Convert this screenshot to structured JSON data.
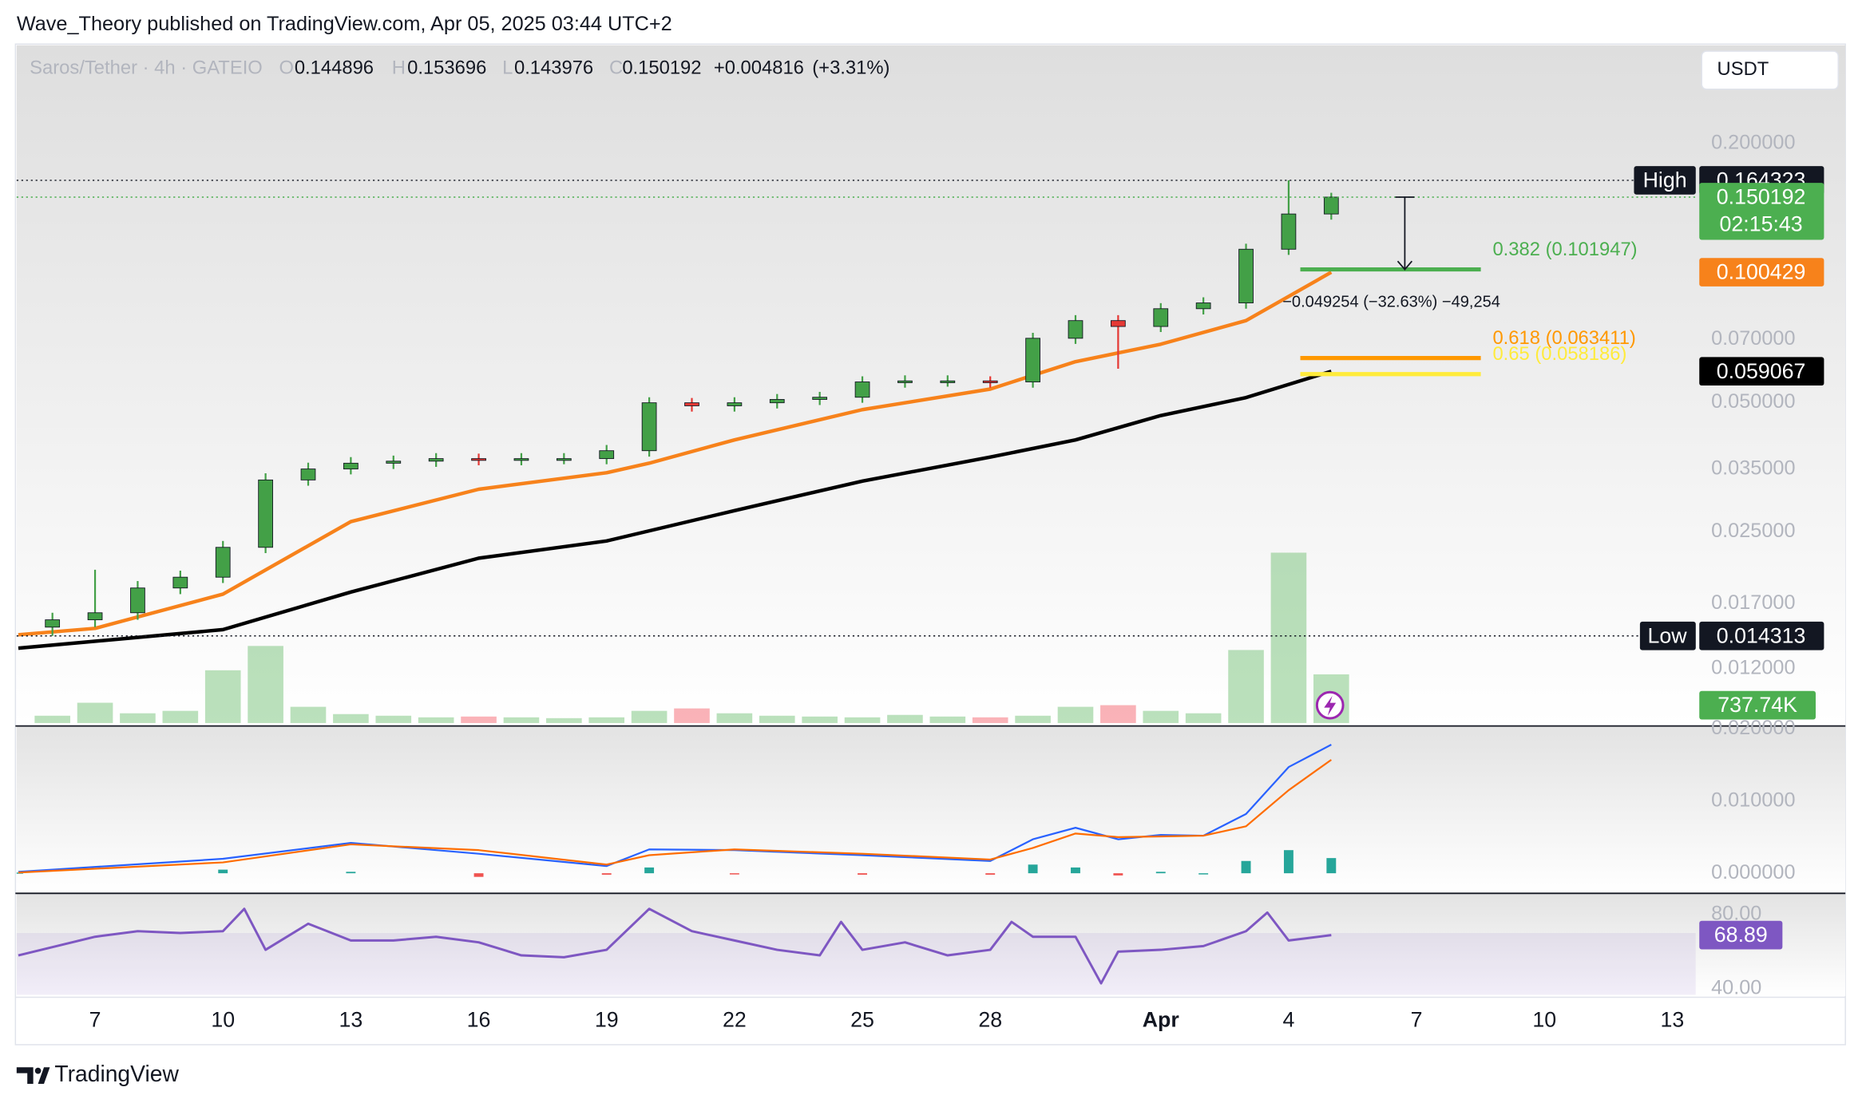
{
  "header": {
    "publisher": "Wave_Theory published on TradingView.com, Apr 05, 2025 03:44 UTC+2"
  },
  "legend": {
    "symbol": "Saros/Tether · 4h · GATEIO",
    "o_label": "O",
    "open": 0.144896,
    "h_label": "H",
    "high": 0.153696,
    "l_label": "L",
    "low": 0.143976,
    "c_label": "C",
    "close": 0.150192,
    "change": {
      "value": 0.004816,
      "label": "+0.004816"
    },
    "change_pct": {
      "value": 3.31,
      "label": "(+3.31%)"
    }
  },
  "currency": "USDT",
  "footer": {
    "brand": "TradingView"
  },
  "chart_data": [
    {
      "type": "candlestick",
      "log": true,
      "up_color": "#43a047",
      "down_color": "#e53935",
      "x": [
        6,
        7,
        8,
        9,
        10,
        11,
        12,
        13,
        14,
        15,
        16,
        17,
        18,
        19,
        20,
        21,
        22,
        23,
        24,
        25,
        26,
        27,
        28,
        29,
        30,
        31,
        32,
        33,
        34,
        35,
        36
      ],
      "open": [
        0.015,
        0.0156,
        0.0162,
        0.0185,
        0.0196,
        0.023,
        0.033,
        0.035,
        0.0361,
        0.0365,
        0.037,
        0.0368,
        0.037,
        0.037,
        0.0386,
        0.0499,
        0.0491,
        0.0499,
        0.0508,
        0.0514,
        0.0558,
        0.0561,
        0.0561,
        0.0558,
        0.0705,
        0.0775,
        0.0751,
        0.0826,
        0.0852,
        0.1136,
        0.1372
      ],
      "high": [
        0.0162,
        0.0204,
        0.0192,
        0.0203,
        0.0238,
        0.0342,
        0.0362,
        0.0373,
        0.0376,
        0.0381,
        0.038,
        0.0381,
        0.0381,
        0.0398,
        0.0514,
        0.0512,
        0.0514,
        0.0523,
        0.0529,
        0.0575,
        0.0578,
        0.0578,
        0.0575,
        0.0726,
        0.0798,
        0.0798,
        0.0851,
        0.0878,
        0.117,
        0.164323,
        0.1537
      ],
      "low": [
        0.014313,
        0.015,
        0.0156,
        0.0179,
        0.019,
        0.0223,
        0.032,
        0.034,
        0.035,
        0.0354,
        0.0357,
        0.0357,
        0.0359,
        0.0359,
        0.0374,
        0.0476,
        0.0476,
        0.0484,
        0.0493,
        0.0499,
        0.0541,
        0.0544,
        0.0541,
        0.0541,
        0.0684,
        0.0599,
        0.0729,
        0.0801,
        0.0826,
        0.1102,
        0.1331
      ],
      "close": [
        0.0156,
        0.0162,
        0.0185,
        0.0196,
        0.023,
        0.033,
        0.035,
        0.0361,
        0.0365,
        0.037,
        0.0368,
        0.037,
        0.037,
        0.0386,
        0.0499,
        0.0491,
        0.0499,
        0.0508,
        0.0514,
        0.0558,
        0.0561,
        0.0561,
        0.0558,
        0.0705,
        0.0775,
        0.0751,
        0.0826,
        0.0852,
        0.1136,
        0.1372,
        0.150192
      ],
      "lines": [
        {
          "color": "#f7821b",
          "x": [
            5.2,
            7,
            10,
            13,
            16,
            19,
            20,
            22,
            25,
            28,
            30,
            32,
            34,
            36
          ],
          "values": [
            0.0144,
            0.0149,
            0.0179,
            0.0264,
            0.0314,
            0.0343,
            0.0361,
            0.0409,
            0.0481,
            0.0537,
            0.0622,
            0.0683,
            0.0775,
            0.100429
          ]
        },
        {
          "color": "#000000",
          "x": [
            5.2,
            10,
            13,
            16,
            19,
            22,
            25,
            28,
            30,
            32,
            34,
            36
          ],
          "values": [
            0.0134,
            0.0148,
            0.0181,
            0.0217,
            0.0238,
            0.028,
            0.0328,
            0.0373,
            0.0409,
            0.0466,
            0.0513,
            0.059067
          ]
        }
      ],
      "xlim": [
        5.16,
        44.55
      ],
      "xticks": [
        7,
        10,
        13,
        16,
        19,
        22,
        25,
        28,
        {
          "value": 32,
          "label": "Apr"
        },
        {
          "value": 35,
          "label": "4"
        },
        {
          "value": 38,
          "label": "7"
        },
        {
          "value": 41,
          "label": "10"
        },
        {
          "value": 44,
          "label": "13"
        }
      ],
      "ylim": [
        0.00886,
        0.341
      ],
      "yticks": [
        {
          "value": 0.2,
          "label": "0.200000"
        },
        {
          "value": 0.07,
          "label": "0.070000"
        },
        {
          "value": 0.05,
          "label": "0.050000"
        },
        {
          "value": 0.035,
          "label": "0.035000"
        },
        {
          "value": 0.025,
          "label": "0.025000"
        },
        {
          "value": 0.017,
          "label": "0.017000"
        },
        {
          "value": 0.012,
          "label": "0.012000"
        }
      ],
      "high_tag": "High",
      "low_tag": "Low",
      "last_color": "#4caf50",
      "countdown": "02:15:43",
      "fib_levels": [
        {
          "value": 0.101947,
          "label": "0.382 (0.101947)",
          "color": "#4caf50"
        },
        {
          "value": 0.063411,
          "label": "0.618 (0.063411)",
          "color": "#ff9800"
        },
        {
          "value": 0.058186,
          "label": "0.65 (0.058186)",
          "color": "#ffeb3b"
        }
      ],
      "measure": {
        "value": -0.049254,
        "label": "−0.049254 (−32.63%) −49,254"
      }
    },
    {
      "type": "volume",
      "up_color": "rgba(76,175,80,0.38)",
      "down_color": "rgba(242,54,69,0.38)",
      "label_color": "#4caf50",
      "x": [
        6,
        7,
        8,
        9,
        10,
        11,
        12,
        13,
        14,
        15,
        16,
        17,
        18,
        19,
        20,
        21,
        22,
        23,
        24,
        25,
        26,
        27,
        28,
        29,
        30,
        31,
        32,
        33,
        34,
        35,
        36
      ],
      "values": [
        900000,
        2500000,
        1200000,
        1500000,
        6500000,
        9500000,
        2000000,
        1100000,
        900000,
        700000,
        800000,
        700000,
        600000,
        700000,
        1500000,
        1800000,
        1200000,
        900000,
        800000,
        700000,
        1000000,
        800000,
        700000,
        900000,
        2000000,
        2200000,
        1500000,
        1200000,
        9000000,
        21000000,
        6000000
      ],
      "ylim": [
        0,
        83700000
      ],
      "last": {
        "value": 737740,
        "label": "737.74K"
      }
    },
    {
      "type": "macd",
      "x": [
        5.2,
        10,
        13,
        16,
        19,
        20,
        22,
        25,
        28,
        29,
        30,
        31,
        32,
        33,
        34,
        35,
        36
      ],
      "series": [
        {
          "color": "#2962ff",
          "values": [
            0.0002,
            0.002,
            0.0042,
            0.0027,
            0.001,
            0.0033,
            0.0032,
            0.0025,
            0.0017,
            0.0047,
            0.0063,
            0.0047,
            0.0053,
            0.0052,
            0.0082,
            0.0147,
            0.0178
          ]
        },
        {
          "color": "#ff6d00",
          "values": [
            0.0001,
            0.0015,
            0.004,
            0.0032,
            0.0012,
            0.0025,
            0.0033,
            0.0027,
            0.0019,
            0.0035,
            0.0055,
            0.005,
            0.0051,
            0.0052,
            0.0065,
            0.0115,
            0.0157
          ]
        }
      ],
      "histogram": [
        0.0001,
        0.0005,
        0.0002,
        -0.0005,
        -0.0002,
        0.0008,
        -0.0001,
        -0.0002,
        -0.0002,
        0.0012,
        0.0008,
        -0.0003,
        0.0002,
        0,
        0.0017,
        0.0032,
        0.0021
      ],
      "pos_color": "#26a69a",
      "neg_color": "#ef5350",
      "ylim": [
        -0.0027,
        0.0203
      ],
      "yticks": [
        {
          "value": 0.02,
          "label": "0.020000"
        },
        {
          "value": 0.01,
          "label": "0.010000"
        },
        {
          "value": 0,
          "label": "0.000000"
        }
      ]
    },
    {
      "type": "rsi",
      "color": "#7e57c2",
      "x": [
        5.2,
        7,
        8,
        9,
        10,
        10.5,
        11,
        12,
        13,
        14,
        15,
        16,
        17,
        18,
        19,
        20,
        21,
        22,
        23,
        24,
        24.5,
        25,
        26,
        27,
        28,
        28.5,
        29,
        30,
        30.6,
        31,
        32,
        33,
        34,
        34.5,
        35,
        36
      ],
      "values": [
        58,
        68,
        71,
        70,
        71,
        83,
        61,
        75,
        66,
        66,
        68,
        65,
        58,
        57,
        61,
        83,
        71,
        66,
        61,
        58,
        76,
        61,
        65,
        58,
        61,
        76,
        68,
        68,
        43,
        60,
        61,
        63,
        71,
        81,
        66,
        68.89
      ],
      "band": [
        30,
        70
      ],
      "ylim": [
        36.8,
        91
      ],
      "yticks": [
        {
          "value": 80,
          "label": "80.00"
        },
        {
          "value": 40,
          "label": "40.00"
        }
      ]
    }
  ]
}
